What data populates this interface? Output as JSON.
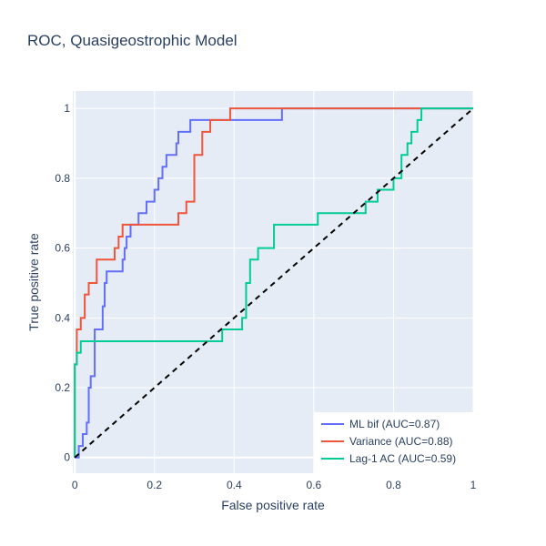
{
  "chart_data": {
    "type": "line",
    "title": "ROC, Quasigeostrophic Model",
    "xlabel": "False positive rate",
    "ylabel": "True positive rate",
    "xlim": [
      -0.005,
      1.0
    ],
    "ylim": [
      -0.045,
      1.05
    ],
    "x_ticks": [
      0,
      0.2,
      0.4,
      0.6,
      0.8,
      1
    ],
    "x_tick_labels": [
      "0",
      "0.2",
      "0.4",
      "0.6",
      "0.8",
      "1"
    ],
    "y_ticks": [
      0,
      0.2,
      0.4,
      0.6,
      0.8,
      1
    ],
    "y_tick_labels": [
      "0",
      "0.2",
      "0.4",
      "0.6",
      "0.8",
      "1"
    ],
    "grid": true,
    "legend_position": "bottom-right",
    "series": [
      {
        "name": "ML bif (AUC=0.87)",
        "color": "#636efa",
        "x": [
          0,
          0.01,
          0.01,
          0.02,
          0.02,
          0.03,
          0.03,
          0.035,
          0.035,
          0.04,
          0.04,
          0.05,
          0.05,
          0.07,
          0.07,
          0.075,
          0.075,
          0.08,
          0.08,
          0.12,
          0.12,
          0.125,
          0.125,
          0.13,
          0.13,
          0.14,
          0.14,
          0.16,
          0.16,
          0.18,
          0.18,
          0.2,
          0.2,
          0.21,
          0.21,
          0.22,
          0.22,
          0.23,
          0.23,
          0.25,
          0.25,
          0.255,
          0.255,
          0.26,
          0.26,
          0.27,
          0.27,
          0.29,
          0.29,
          0.52,
          0.52,
          1
        ],
        "y": [
          0,
          0,
          0.033,
          0.033,
          0.067,
          0.067,
          0.1,
          0.1,
          0.2,
          0.2,
          0.233,
          0.233,
          0.367,
          0.367,
          0.433,
          0.433,
          0.5,
          0.5,
          0.533,
          0.533,
          0.567,
          0.567,
          0.6,
          0.6,
          0.633,
          0.633,
          0.667,
          0.667,
          0.7,
          0.7,
          0.733,
          0.733,
          0.767,
          0.767,
          0.8,
          0.8,
          0.833,
          0.833,
          0.867,
          0.867,
          0.867,
          0.867,
          0.9,
          0.9,
          0.933,
          0.933,
          0.933,
          0.933,
          0.967,
          0.967,
          1,
          1
        ]
      },
      {
        "name": "Variance (AUC=0.88)",
        "color": "#ef553b",
        "x": [
          0,
          0,
          0.005,
          0.005,
          0.015,
          0.015,
          0.025,
          0.025,
          0.035,
          0.035,
          0.055,
          0.055,
          0.1,
          0.1,
          0.11,
          0.11,
          0.12,
          0.12,
          0.26,
          0.26,
          0.28,
          0.28,
          0.3,
          0.3,
          0.32,
          0.32,
          0.34,
          0.34,
          0.39,
          0.39,
          0.865,
          0.865,
          1
        ],
        "y": [
          0,
          0.267,
          0.267,
          0.367,
          0.367,
          0.4,
          0.4,
          0.467,
          0.467,
          0.5,
          0.5,
          0.567,
          0.567,
          0.6,
          0.6,
          0.633,
          0.633,
          0.667,
          0.667,
          0.7,
          0.7,
          0.733,
          0.733,
          0.867,
          0.867,
          0.933,
          0.933,
          0.967,
          0.967,
          1,
          1,
          1,
          1
        ]
      },
      {
        "name": "Lag-1 AC (AUC=0.59)",
        "color": "#00cc96",
        "x": [
          0,
          0,
          0.005,
          0.005,
          0.015,
          0.015,
          0.37,
          0.37,
          0.42,
          0.42,
          0.43,
          0.43,
          0.44,
          0.44,
          0.46,
          0.46,
          0.5,
          0.5,
          0.61,
          0.61,
          0.73,
          0.73,
          0.76,
          0.76,
          0.8,
          0.8,
          0.82,
          0.82,
          0.835,
          0.835,
          0.845,
          0.845,
          0.86,
          0.86,
          0.87,
          0.87,
          1
        ],
        "y": [
          0,
          0.267,
          0.267,
          0.3,
          0.3,
          0.333,
          0.333,
          0.367,
          0.367,
          0.4,
          0.4,
          0.5,
          0.5,
          0.567,
          0.567,
          0.6,
          0.6,
          0.667,
          0.667,
          0.7,
          0.7,
          0.733,
          0.733,
          0.767,
          0.767,
          0.8,
          0.8,
          0.867,
          0.867,
          0.9,
          0.9,
          0.933,
          0.933,
          0.967,
          0.967,
          1,
          1
        ]
      }
    ],
    "reference_line": {
      "x": [
        0,
        1
      ],
      "y": [
        0,
        1
      ],
      "color": "#000000",
      "style": "dashed"
    }
  }
}
